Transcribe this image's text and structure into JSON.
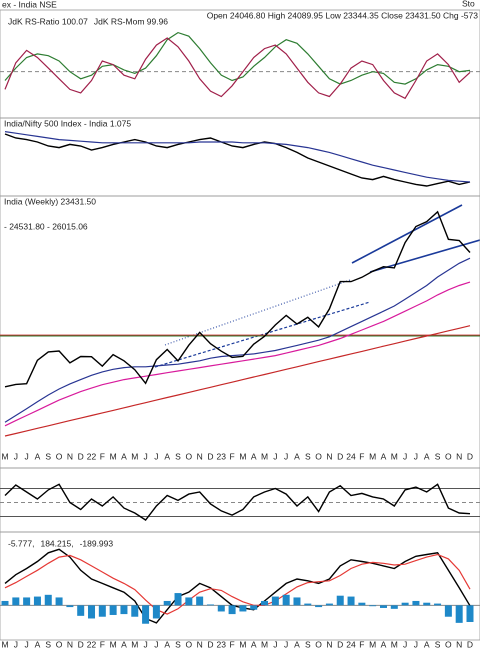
{
  "header": {
    "title": "ex - India NSE",
    "ohlc": "Open 24046.80 High 24089.95 Low 23344.35 Close 23431.50 Chg -573",
    "source": "Sto"
  },
  "chart_data": [
    {
      "type": "line",
      "ylim": [
        97.5,
        102.8
      ],
      "reference_lines": [
        {
          "value": 100,
          "color": "#888",
          "dash": true
        }
      ],
      "series": [
        {
          "name": "JdK RS-Ratio 100.07",
          "color": "#2e7d32",
          "values": [
            99.5,
            100.2,
            100.8,
            101.0,
            100.9,
            100.6,
            100.0,
            99.6,
            99.8,
            100.3,
            100.4,
            100.1,
            99.9,
            100.2,
            100.9,
            101.8,
            102.2,
            102.0,
            101.3,
            100.5,
            99.8,
            99.5,
            99.7,
            100.3,
            100.8,
            101.4,
            101.8,
            101.6,
            101.0,
            100.3,
            99.6,
            99.3,
            99.5,
            99.8,
            100.0,
            99.9,
            99.4,
            99.3,
            99.6,
            100.1,
            100.4,
            100.3,
            100.0,
            100.07
          ]
        },
        {
          "name": "JdK RS-Mom 99.96",
          "color": "#a0204a",
          "values": [
            99.0,
            100.5,
            101.2,
            100.8,
            100.2,
            99.6,
            99.0,
            98.8,
            99.5,
            100.6,
            100.4,
            99.8,
            99.6,
            100.7,
            101.5,
            101.9,
            101.4,
            100.6,
            99.6,
            98.9,
            98.6,
            99.2,
            100.0,
            100.8,
            101.3,
            101.5,
            101.0,
            100.2,
            99.4,
            98.8,
            98.6,
            99.3,
            100.2,
            100.6,
            100.4,
            99.5,
            98.8,
            98.5,
            99.5,
            100.6,
            101.0,
            100.4,
            99.4,
            99.96
          ]
        }
      ]
    },
    {
      "type": "line",
      "title": "India/Nifty 500 Index - India 1.075",
      "ylim": [
        1.06,
        1.145
      ],
      "series": [
        {
          "color": "#000000",
          "values": [
            1.135,
            1.13,
            1.128,
            1.125,
            1.12,
            1.118,
            1.122,
            1.12,
            1.115,
            1.118,
            1.122,
            1.125,
            1.128,
            1.125,
            1.12,
            1.118,
            1.122,
            1.125,
            1.128,
            1.13,
            1.125,
            1.12,
            1.118,
            1.122,
            1.125,
            1.123,
            1.118,
            1.112,
            1.105,
            1.1,
            1.095,
            1.09,
            1.085,
            1.08,
            1.078,
            1.082,
            1.078,
            1.075,
            1.072,
            1.07,
            1.073,
            1.076,
            1.072,
            1.075
          ]
        },
        {
          "color": "#283593",
          "values": [
            1.138,
            1.136,
            1.134,
            1.132,
            1.13,
            1.128,
            1.127,
            1.126,
            1.125,
            1.124,
            1.124,
            1.124,
            1.124,
            1.124,
            1.124,
            1.124,
            1.124,
            1.124,
            1.125,
            1.125,
            1.125,
            1.125,
            1.124,
            1.124,
            1.124,
            1.123,
            1.122,
            1.12,
            1.118,
            1.115,
            1.112,
            1.108,
            1.104,
            1.1,
            1.096,
            1.093,
            1.09,
            1.087,
            1.084,
            1.081,
            1.079,
            1.077,
            1.076,
            1.075
          ]
        }
      ]
    },
    {
      "type": "line",
      "title": "India (Weekly) 23431.50",
      "subtitle": "- 24531.80 - 26015.06",
      "ylim": [
        12000,
        26500
      ],
      "categories": [
        "M",
        "J",
        "J",
        "A",
        "S",
        "O",
        "N",
        "D",
        "22",
        "F",
        "M",
        "A",
        "M",
        "J",
        "J",
        "A",
        "S",
        "O",
        "N",
        "D",
        "23",
        "F",
        "M",
        "A",
        "M",
        "J",
        "J",
        "A",
        "S",
        "O",
        "N",
        "D",
        "24",
        "F",
        "M",
        "A",
        "M",
        "J",
        "J",
        "A",
        "S",
        "O",
        "N",
        "D"
      ],
      "reference_lines": [
        {
          "value": 18600,
          "color": "#c62828"
        },
        {
          "value": 18550,
          "color": "#2e7d32"
        }
      ],
      "series": [
        {
          "color": "#c62828",
          "values": [
            12700,
            12850,
            13000,
            13150,
            13300,
            13450,
            13600,
            13750,
            13900,
            14050,
            14200,
            14350,
            14500,
            14650,
            14800,
            14950,
            15100,
            15250,
            15400,
            15550,
            15700,
            15850,
            16000,
            16150,
            16300,
            16450,
            16600,
            16750,
            16900,
            17050,
            17200,
            17350,
            17500,
            17650,
            17800,
            17950,
            18100,
            18250,
            18400,
            18550,
            18700,
            18850,
            19000,
            19150
          ]
        },
        {
          "color": "#d81b9c",
          "values": [
            13300,
            13600,
            13900,
            14200,
            14500,
            14800,
            15050,
            15300,
            15500,
            15700,
            15850,
            16000,
            16100,
            16200,
            16300,
            16400,
            16500,
            16600,
            16700,
            16800,
            16900,
            17000,
            17100,
            17200,
            17300,
            17400,
            17550,
            17700,
            17850,
            18000,
            18200,
            18400,
            18650,
            18900,
            19150,
            19400,
            19700,
            20000,
            20300,
            20600,
            20950,
            21250,
            21500,
            21700
          ]
        },
        {
          "color": "#283593",
          "values": [
            13500,
            13900,
            14300,
            14700,
            15100,
            15450,
            15750,
            16000,
            16250,
            16450,
            16600,
            16700,
            16750,
            16750,
            16800,
            16850,
            16900,
            17000,
            17100,
            17250,
            17350,
            17400,
            17450,
            17500,
            17600,
            17700,
            17850,
            18000,
            18150,
            18300,
            18500,
            18800,
            19100,
            19400,
            19700,
            20000,
            20300,
            20700,
            21100,
            21500,
            22000,
            22400,
            22800,
            23100
          ]
        },
        {
          "color": "#000000",
          "values": [
            15580,
            15720,
            15760,
            17130,
            17620,
            17670,
            16980,
            17350,
            17340,
            16790,
            17460,
            17100,
            16580,
            15780,
            17160,
            17760,
            17090,
            18010,
            18760,
            18100,
            17660,
            17300,
            17360,
            18070,
            18530,
            19190,
            19750,
            19250,
            19640,
            19080,
            20130,
            21730,
            21730,
            21980,
            22330,
            22600,
            22530,
            24010,
            24950,
            25240,
            25810,
            24200,
            24130,
            23431.5
          ]
        }
      ]
    },
    {
      "type": "line",
      "ylim": [
        -3.5,
        3.5
      ],
      "reference_lines": [
        {
          "value": 2,
          "color": "#555"
        },
        {
          "value": 0,
          "color": "#888",
          "dash": true
        },
        {
          "value": -2,
          "color": "#555"
        }
      ],
      "series": [
        {
          "color": "#000000",
          "values": [
            1.0,
            2.5,
            1.5,
            0.5,
            1.8,
            2.6,
            0.0,
            -1.0,
            0.5,
            -0.5,
            0.8,
            -0.8,
            -1.5,
            -2.5,
            -0.5,
            1.0,
            0.3,
            1.2,
            1.5,
            -0.2,
            -1.2,
            -1.8,
            -1.0,
            0.8,
            1.5,
            2.0,
            1.2,
            -0.5,
            0.8,
            -1.3,
            1.5,
            2.4,
            1.0,
            1.3,
            0.8,
            0.5,
            -0.5,
            1.8,
            2.2,
            1.5,
            2.6,
            -0.8,
            -1.5,
            -1.6
          ]
        }
      ]
    },
    {
      "type": "line",
      "ylim": [
        -350,
        700
      ],
      "reference_lines": [
        {
          "value": 0,
          "color": "#888"
        }
      ],
      "series": [
        {
          "name": "-5.777,",
          "color": "#000000",
          "values": [
            250,
            350,
            420,
            500,
            600,
            640,
            550,
            400,
            300,
            250,
            200,
            150,
            50,
            -150,
            -200,
            -50,
            100,
            150,
            250,
            200,
            100,
            0,
            -30,
            -50,
            50,
            150,
            250,
            300,
            280,
            250,
            300,
            450,
            520,
            500,
            480,
            450,
            420,
            500,
            560,
            580,
            600,
            400,
            200,
            -5.777
          ]
        },
        {
          "name": "184.215,",
          "color": "#e53935",
          "values": [
            200,
            260,
            330,
            400,
            480,
            550,
            570,
            520,
            450,
            380,
            310,
            250,
            180,
            60,
            -50,
            -100,
            -40,
            60,
            150,
            190,
            170,
            100,
            40,
            0,
            0,
            50,
            130,
            210,
            260,
            270,
            280,
            340,
            420,
            470,
            490,
            480,
            460,
            470,
            510,
            550,
            580,
            530,
            400,
            184.215
          ]
        },
        {
          "name": "-189.993",
          "color": "#1e88c8",
          "style": "bar",
          "values": [
            50,
            90,
            90,
            100,
            120,
            90,
            -20,
            -120,
            -150,
            -130,
            -110,
            -100,
            -130,
            -210,
            -150,
            50,
            140,
            90,
            100,
            10,
            -70,
            -100,
            -70,
            -50,
            50,
            100,
            120,
            90,
            20,
            -20,
            20,
            110,
            100,
            30,
            -10,
            -30,
            -40,
            30,
            50,
            30,
            20,
            -130,
            -200,
            -189.993
          ]
        }
      ]
    }
  ]
}
